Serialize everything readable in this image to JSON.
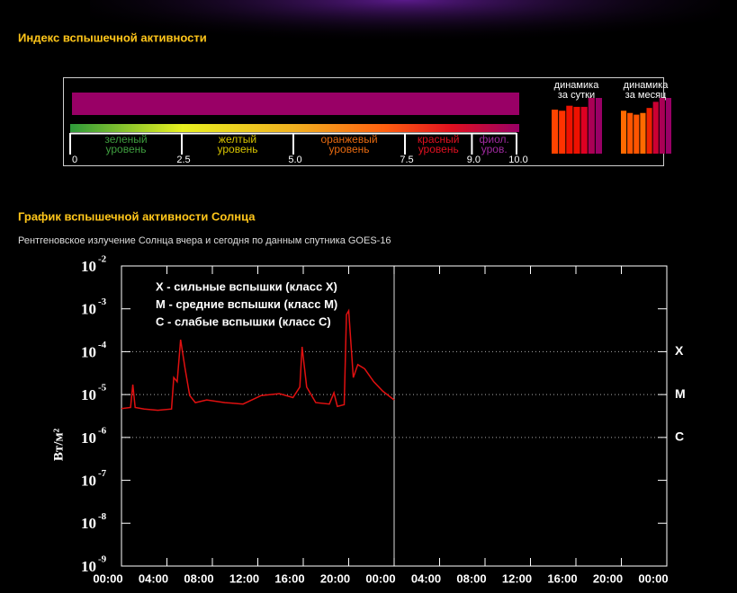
{
  "page": {
    "index_section": {
      "title": "Индекс вспышечной активности",
      "index": {
        "value": 10,
        "color": "#990066",
        "xlim": [
          0,
          10
        ],
        "ticks": [
          0,
          2.5,
          {
            "value": 5,
            "label": "5.0"
          },
          7.5,
          {
            "value": 9,
            "label": "9.0"
          },
          {
            "value": 10,
            "label": "10.0"
          }
        ],
        "levels": [
          {
            "lines": [
              "зеленый",
              "уровень"
            ],
            "color": "#3f9f3f"
          },
          {
            "lines": [
              "желтый",
              "уровень"
            ],
            "color": "#d8c400"
          },
          {
            "lines": [
              "оранжевый",
              "уровень"
            ],
            "color": "#e86a10"
          },
          {
            "lines": [
              "красный",
              "уровень"
            ],
            "color": "#e01020"
          },
          {
            "lines": [
              "фиол.",
              "уров."
            ],
            "color": "#a02aa0"
          }
        ]
      },
      "dynamics": [
        {
          "lines": [
            "динамика",
            "за сутки"
          ],
          "ylim": [
            0,
            10
          ],
          "values": [
            7.9,
            7.7,
            8.6,
            8.4,
            8.4,
            10,
            10
          ],
          "colors": [
            "#ff4400",
            "#ff3300",
            "#ee1100",
            "#ee1100",
            "#dd0022",
            "#aa0055",
            "#990066"
          ]
        },
        {
          "lines": [
            "динамика",
            "за месяц"
          ],
          "ylim": [
            0,
            10
          ],
          "values": [
            7.7,
            7.3,
            7.0,
            7.3,
            8.2,
            9.3,
            10,
            10
          ],
          "colors": [
            "#ff6a00",
            "#ff5500",
            "#ff5500",
            "#ff6a00",
            "#ee2200",
            "#cc0033",
            "#aa0055",
            "#990066"
          ]
        }
      ]
    }
  },
  "chart_data": {
    "type": "line",
    "title": "График вспышечной активности Солнца",
    "subtitle": "Рентгеновское излучение Солнца вчера и сегодня по данным спутника GOES-16",
    "y_label": "Вт/м²",
    "log_y": true,
    "color": "#e01010",
    "x": [
      0,
      0.8,
      1,
      1.2,
      2,
      3.2,
      4.4,
      4.6,
      4.9,
      5.2,
      5.6,
      6,
      6.5,
      7.5,
      9.1,
      10.7,
      12.3,
      13.9,
      15.1,
      15.7,
      15.9,
      16.3,
      17.1,
      18.3,
      18.7,
      19.0,
      19.6,
      19.8,
      20.0,
      20.4,
      20.8,
      21.4,
      22.2,
      23,
      24
    ],
    "values": [
      4.7e-06,
      5e-06,
      1.7e-05,
      5e-06,
      4.6e-06,
      4.3e-06,
      4.6e-06,
      2.5e-05,
      2e-05,
      0.00019,
      4e-05,
      9.5e-06,
      6.5e-06,
      7.5e-06,
      6.5e-06,
      6e-06,
      9.5e-06,
      1.05e-05,
      8.5e-06,
      1.5e-05,
      0.00013,
      1.5e-05,
      6.5e-06,
      6e-06,
      1.1e-05,
      5.3e-06,
      5.8e-06,
      0.00073,
      0.0009,
      2.5e-05,
      5e-05,
      4e-05,
      2e-05,
      1.2e-05,
      7.5e-06
    ],
    "xlim": [
      0,
      48
    ],
    "xticks": [
      {
        "value": 0,
        "label": "00:00"
      },
      {
        "value": 4,
        "label": "04:00"
      },
      {
        "value": 8,
        "label": "08:00"
      },
      {
        "value": 12,
        "label": "12:00"
      },
      {
        "value": 16,
        "label": "16:00"
      },
      {
        "value": 20,
        "label": "20:00"
      },
      {
        "value": 24,
        "label": "00:00"
      },
      {
        "value": 28,
        "label": "04:00"
      },
      {
        "value": 32,
        "label": "08:00"
      },
      {
        "value": 36,
        "label": "12:00"
      },
      {
        "value": 40,
        "label": "16:00"
      },
      {
        "value": 44,
        "label": "20:00"
      },
      {
        "value": 48,
        "label": "00:00"
      }
    ],
    "xdivider": 24,
    "ylim": [
      1e-09,
      0.01
    ],
    "yticks": [
      {
        "value": 1e-09,
        "label": "10",
        "exponent": "-9"
      },
      {
        "value": 1e-08,
        "label": "10",
        "exponent": "-8"
      },
      {
        "value": 1e-07,
        "label": "10",
        "exponent": "-7"
      },
      {
        "value": 1e-06,
        "label": "10",
        "exponent": "-6"
      },
      {
        "value": 1e-05,
        "label": "10",
        "exponent": "-5"
      },
      {
        "value": 0.0001,
        "label": "10",
        "exponent": "-4"
      },
      {
        "value": 0.001,
        "label": "10",
        "exponent": "-3"
      },
      {
        "value": 0.01,
        "label": "10",
        "exponent": "-2"
      }
    ],
    "levels": [
      {
        "label": "X",
        "value": 0.0001
      },
      {
        "label": "M",
        "value": 1e-05
      },
      {
        "label": "C",
        "value": 1e-06
      }
    ],
    "legend": [
      "X - сильные вспышки (класс X)",
      "M - средние вспышки (класс M)",
      "C - слабые вспышки (класс C)"
    ]
  }
}
